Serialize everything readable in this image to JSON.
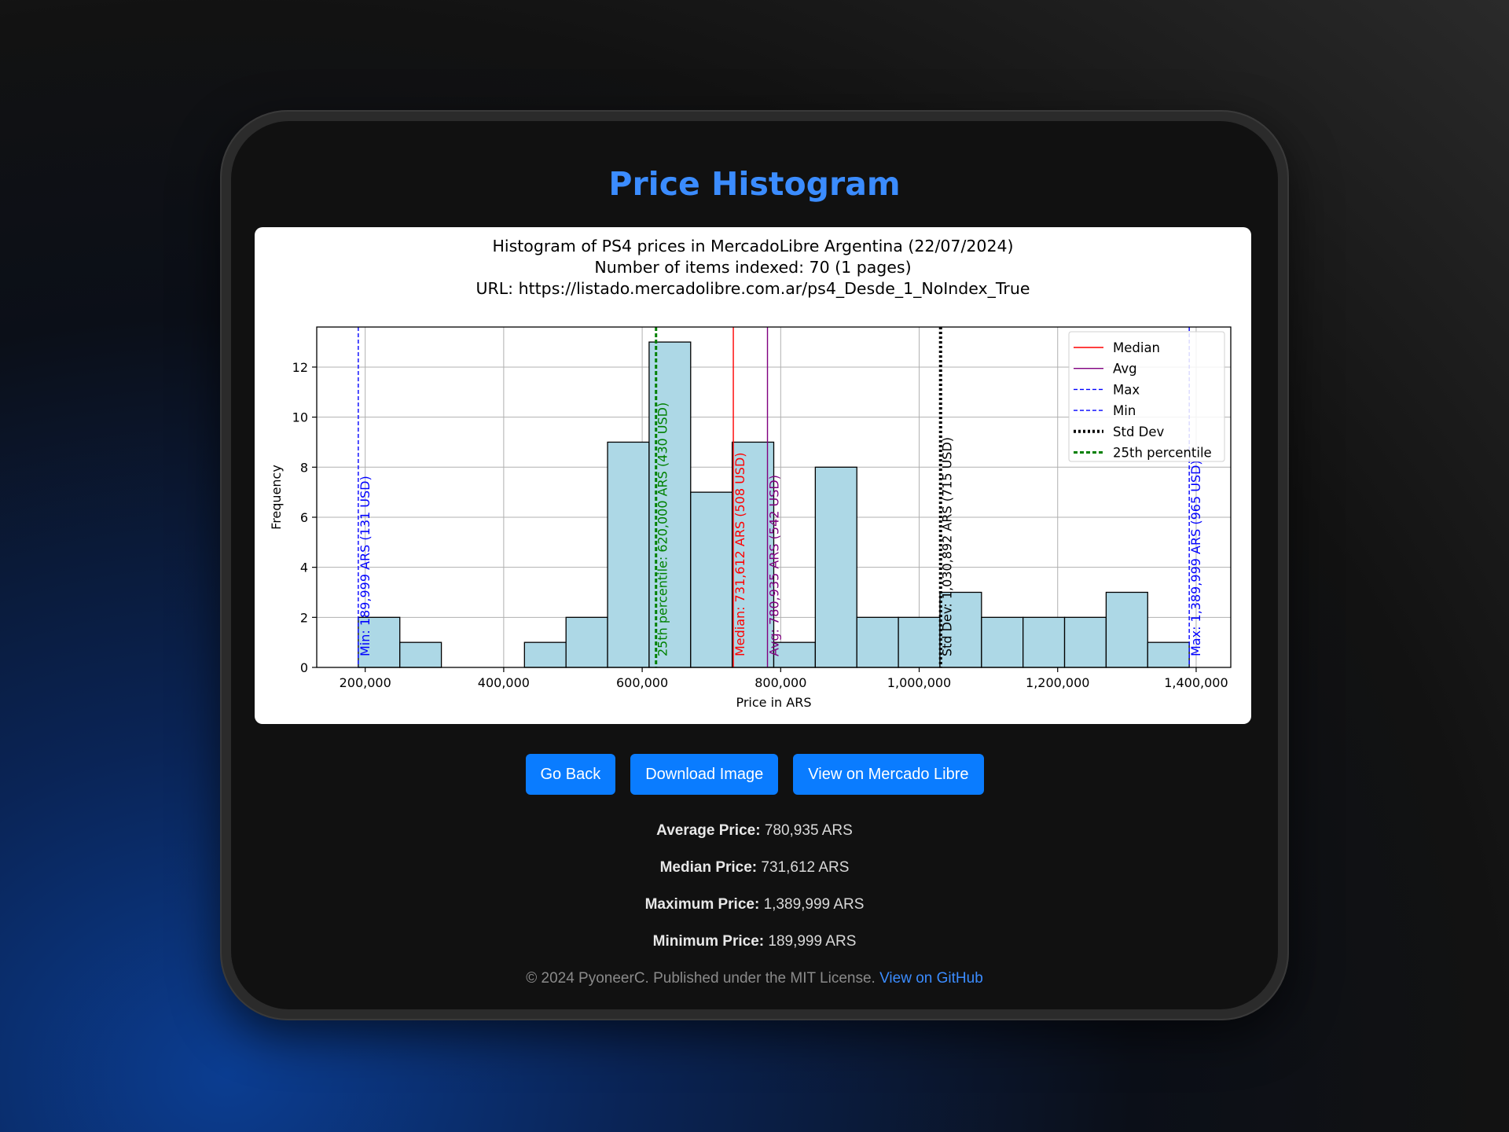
{
  "page": {
    "title": "Price Histogram"
  },
  "chart_data": {
    "type": "bar",
    "title_lines": [
      "Histogram of PS4 prices in MercadoLibre Argentina (22/07/2024)",
      "Number of items indexed: 70 (1 pages)",
      "URL: https://listado.mercadolibre.com.ar/ps4_Desde_1_NoIndex_True"
    ],
    "xlabel": "Price in ARS",
    "ylabel": "Frequency",
    "xlim": [
      130000,
      1450000
    ],
    "ylim": [
      0,
      13.6
    ],
    "x_ticks": [
      200000,
      400000,
      600000,
      800000,
      1000000,
      1200000,
      1400000
    ],
    "x_tick_labels": [
      "200,000",
      "400,000",
      "600,000",
      "800,000",
      "1,000,000",
      "1,200,000",
      "1,400,000"
    ],
    "y_ticks": [
      0,
      2,
      4,
      6,
      8,
      10,
      12
    ],
    "y_tick_labels": [
      "0",
      "2",
      "4",
      "6",
      "8",
      "10",
      "12"
    ],
    "grid": true,
    "bin_start": 189999,
    "bin_end": 1389999,
    "bins": 20,
    "counts": [
      2,
      1,
      0,
      0,
      1,
      2,
      9,
      13,
      7,
      9,
      1,
      8,
      2,
      2,
      3,
      2,
      2,
      2,
      3,
      1
    ],
    "bar_color": "#add8e6",
    "legend_position": "upper right",
    "reference_lines": [
      {
        "name": "Median",
        "x": 731612,
        "color": "#ff0000",
        "style": "solid",
        "label": "Median: 731,612 ARS (508 USD)"
      },
      {
        "name": "Avg",
        "x": 780935,
        "color": "#800080",
        "style": "solid",
        "label": "Avg: 780,935 ARS (542 USD)"
      },
      {
        "name": "Max",
        "x": 1389999,
        "color": "#0000ff",
        "style": "dashed",
        "label": "Max: 1,389,999 ARS (965 USD)"
      },
      {
        "name": "Min",
        "x": 189999,
        "color": "#0000ff",
        "style": "dashed",
        "label": "Min: 189,999 ARS (131 USD)"
      },
      {
        "name": "Std Dev",
        "x": 1030892,
        "color": "#000000",
        "style": "dotted",
        "label": "Std Dev: 1,030,892 ARS (715 USD)"
      },
      {
        "name": "25th percentile",
        "x": 620000,
        "color": "#008000",
        "style": "dashed",
        "label": "25th percentile: 620,000 ARS (430 USD)"
      }
    ]
  },
  "buttons": {
    "go_back": "Go Back",
    "download": "Download Image",
    "view_ml": "View on Mercado Libre"
  },
  "stats": {
    "avg_label": "Average Price:",
    "avg_value": " 780,935 ARS",
    "median_label": "Median Price:",
    "median_value": " 731,612 ARS",
    "max_label": "Maximum Price:",
    "max_value": " 1,389,999 ARS",
    "min_label": "Minimum Price:",
    "min_value": " 189,999 ARS"
  },
  "footer": {
    "text": "© 2024 PyoneerC. Published under the MIT License. ",
    "link": "View on GitHub"
  }
}
